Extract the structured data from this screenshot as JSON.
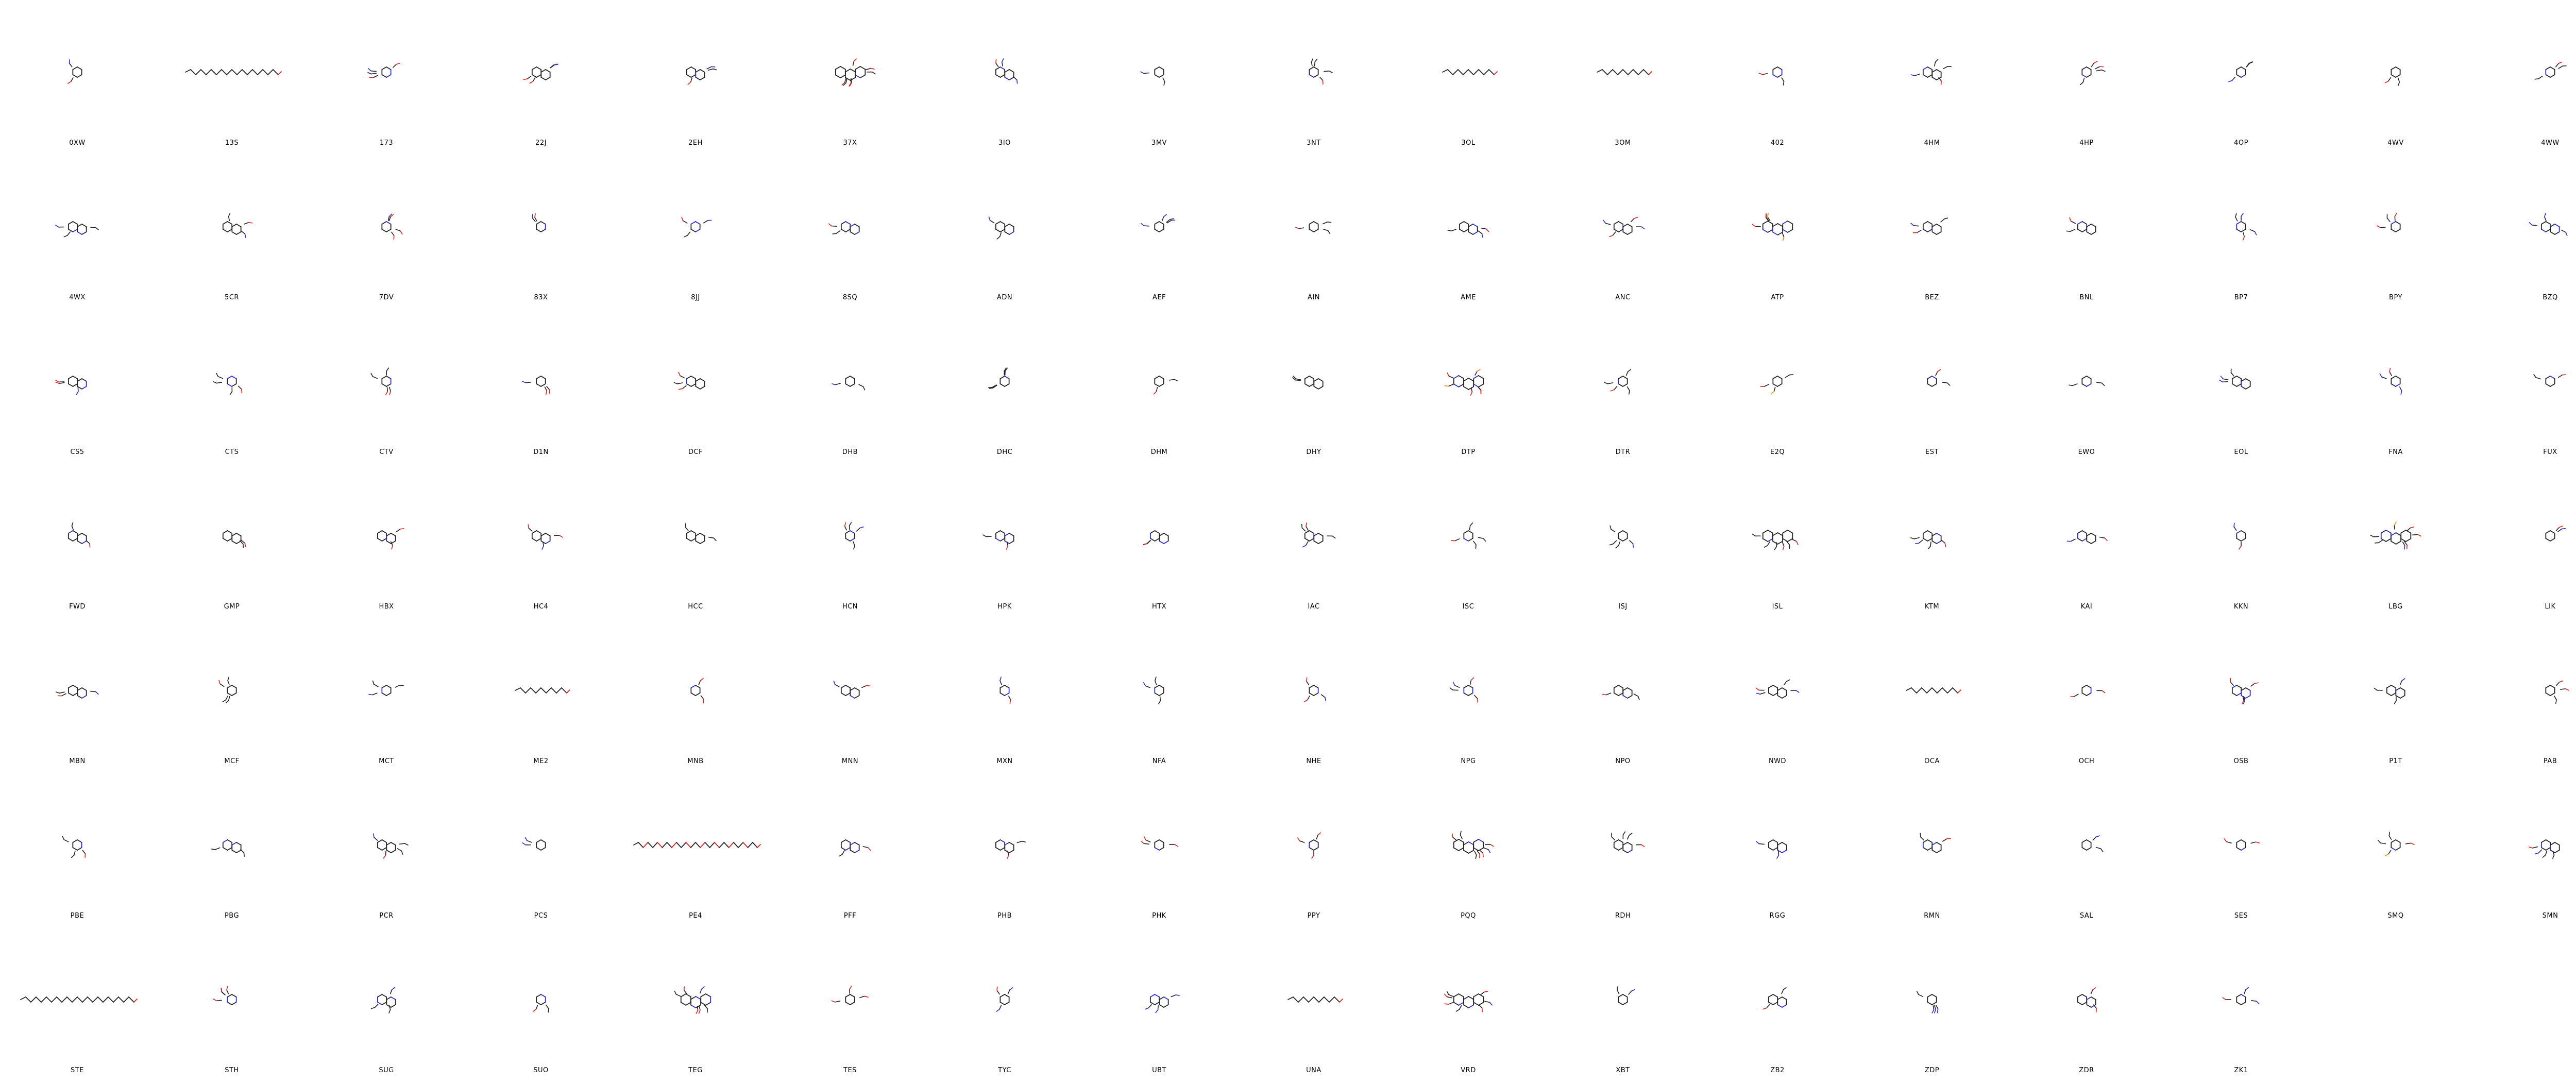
{
  "grid": {
    "columns": 17,
    "labels": [
      "0XW",
      "13S",
      "173",
      "22J",
      "2EH",
      "37X",
      "3IO",
      "3MV",
      "3NT",
      "3OL",
      "3OM",
      "402",
      "4HM",
      "4HP",
      "4OP",
      "4WV",
      "4WW",
      "4WX",
      "5CR",
      "7DV",
      "83X",
      "8JJ",
      "8SQ",
      "ADN",
      "AEF",
      "AIN",
      "AME",
      "ANC",
      "ATP",
      "BEZ",
      "BNL",
      "BP7",
      "BPY",
      "BZQ",
      "CS5",
      "CTS",
      "CTV",
      "D1N",
      "DCF",
      "DHB",
      "DHC",
      "DHM",
      "DHY",
      "DTP",
      "DTR",
      "E2Q",
      "EST",
      "EWO",
      "EOL",
      "FNA",
      "FUX",
      "FWD",
      "GMP",
      "HBX",
      "HC4",
      "HCC",
      "HCN",
      "HPK",
      "HTX",
      "IAC",
      "ISC",
      "ISJ",
      "ISL",
      "KTM",
      "KAI",
      "KKN",
      "LBG",
      "LIK",
      "MBN",
      "MCF",
      "MCT",
      "ME2",
      "MNB",
      "MNN",
      "MXN",
      "NFA",
      "NHE",
      "NPG",
      "NPO",
      "NWD",
      "OCA",
      "OCH",
      "OSB",
      "P1T",
      "PAB",
      "PBE",
      "PBG",
      "PCR",
      "PCS",
      "PE4",
      "PFF",
      "PHB",
      "PHK",
      "PPY",
      "PQQ",
      "RDH",
      "RGG",
      "RMN",
      "SAL",
      "SES",
      "SMQ",
      "SMN",
      "STE",
      "STH",
      "SUG",
      "SUO",
      "TEG",
      "TES",
      "TYC",
      "UBT",
      "UNA",
      "VRD",
      "XBT",
      "ZB2",
      "ZDP",
      "ZDR",
      "ZK1"
    ]
  }
}
